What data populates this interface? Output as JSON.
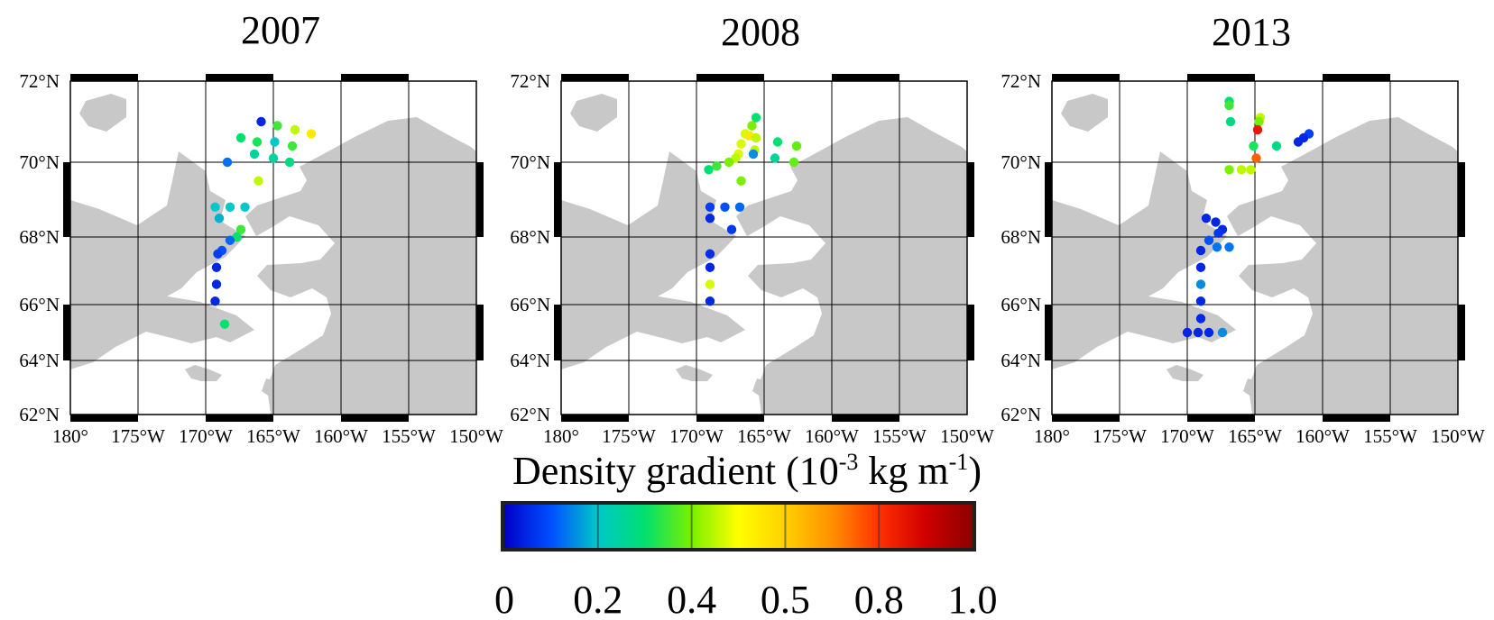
{
  "figure": {
    "colorbar_title_main": "Density gradient (10",
    "colorbar_title_exp1": "-3",
    "colorbar_title_mid": " kg m",
    "colorbar_title_exp2": "-1",
    "colorbar_title_end": ")",
    "colorbar_ticks": [
      "0",
      "0.2",
      "0.4",
      "0.5",
      "0.8",
      "1.0"
    ],
    "colorbar_tick_values": [
      0,
      0.2,
      0.4,
      0.5,
      0.8,
      1.0
    ],
    "colormap": [
      "#0000c8",
      "#0050ff",
      "#00c8c8",
      "#00e070",
      "#7af000",
      "#ffff00",
      "#ffd000",
      "#ff9000",
      "#ff3000",
      "#d00000",
      "#8c0000"
    ],
    "land_color": "#c8c8c8",
    "water_color": "#ffffff"
  },
  "chart_data": [
    {
      "type": "scatter",
      "title": "2007",
      "xlabel": "",
      "ylabel": "",
      "xlim": [
        -180,
        -150
      ],
      "ylim": [
        62,
        72
      ],
      "xticks": [
        "180°",
        "175°W",
        "170°W",
        "165°W",
        "160°W",
        "155°W",
        "150°W"
      ],
      "yticks": [
        "62°N",
        "64°N",
        "66°N",
        "68°N",
        "70°N",
        "72°N"
      ],
      "grid": true,
      "points": [
        {
          "lon": -165.9,
          "lat": 71.0,
          "v": 0.05
        },
        {
          "lon": -164.7,
          "lat": 70.9,
          "v": 0.35
        },
        {
          "lon": -163.4,
          "lat": 70.8,
          "v": 0.45
        },
        {
          "lon": -162.2,
          "lat": 70.7,
          "v": 0.55
        },
        {
          "lon": -167.4,
          "lat": 70.6,
          "v": 0.3
        },
        {
          "lon": -166.2,
          "lat": 70.5,
          "v": 0.32
        },
        {
          "lon": -164.9,
          "lat": 70.5,
          "v": 0.2
        },
        {
          "lon": -163.6,
          "lat": 70.4,
          "v": 0.35
        },
        {
          "lon": -166.4,
          "lat": 70.2,
          "v": 0.25
        },
        {
          "lon": -165.0,
          "lat": 70.1,
          "v": 0.25
        },
        {
          "lon": -163.8,
          "lat": 70.0,
          "v": 0.28
        },
        {
          "lon": -168.4,
          "lat": 70.0,
          "v": 0.13
        },
        {
          "lon": -166.1,
          "lat": 69.5,
          "v": 0.45
        },
        {
          "lon": -169.3,
          "lat": 68.8,
          "v": 0.2
        },
        {
          "lon": -168.2,
          "lat": 68.8,
          "v": 0.2
        },
        {
          "lon": -167.1,
          "lat": 68.8,
          "v": 0.2
        },
        {
          "lon": -169.0,
          "lat": 68.5,
          "v": 0.18
        },
        {
          "lon": -167.4,
          "lat": 68.2,
          "v": 0.35
        },
        {
          "lon": -167.7,
          "lat": 68.0,
          "v": 0.3
        },
        {
          "lon": -168.2,
          "lat": 67.9,
          "v": 0.12
        },
        {
          "lon": -168.8,
          "lat": 67.6,
          "v": 0.1
        },
        {
          "lon": -169.1,
          "lat": 67.5,
          "v": 0.08
        },
        {
          "lon": -169.2,
          "lat": 67.1,
          "v": 0.05
        },
        {
          "lon": -169.2,
          "lat": 66.6,
          "v": 0.05
        },
        {
          "lon": -169.3,
          "lat": 66.1,
          "v": 0.05
        },
        {
          "lon": -168.6,
          "lat": 65.3,
          "v": 0.3
        }
      ]
    },
    {
      "type": "scatter",
      "title": "2008",
      "xlabel": "",
      "ylabel": "",
      "xlim": [
        -180,
        -150
      ],
      "ylim": [
        62,
        72
      ],
      "xticks": [
        "180°",
        "175°W",
        "170°W",
        "165°W",
        "160°W",
        "155°W",
        "150°W"
      ],
      "yticks": [
        "62°N",
        "64°N",
        "66°N",
        "68°N",
        "70°N",
        "72°N"
      ],
      "grid": true,
      "points": [
        {
          "lon": -165.6,
          "lat": 71.1,
          "v": 0.3
        },
        {
          "lon": -165.9,
          "lat": 70.9,
          "v": 0.4
        },
        {
          "lon": -166.4,
          "lat": 70.7,
          "v": 0.47
        },
        {
          "lon": -166.1,
          "lat": 70.65,
          "v": 0.55
        },
        {
          "lon": -165.6,
          "lat": 70.6,
          "v": 0.45
        },
        {
          "lon": -166.7,
          "lat": 70.45,
          "v": 0.47
        },
        {
          "lon": -165.7,
          "lat": 70.3,
          "v": 0.45
        },
        {
          "lon": -164.0,
          "lat": 70.5,
          "v": 0.3
        },
        {
          "lon": -162.6,
          "lat": 70.4,
          "v": 0.38
        },
        {
          "lon": -166.9,
          "lat": 70.2,
          "v": 0.47
        },
        {
          "lon": -165.8,
          "lat": 70.2,
          "v": 0.15
        },
        {
          "lon": -164.2,
          "lat": 70.1,
          "v": 0.25
        },
        {
          "lon": -162.8,
          "lat": 70.0,
          "v": 0.38
        },
        {
          "lon": -167.1,
          "lat": 70.1,
          "v": 0.45
        },
        {
          "lon": -167.6,
          "lat": 70.0,
          "v": 0.4
        },
        {
          "lon": -168.5,
          "lat": 69.9,
          "v": 0.35
        },
        {
          "lon": -169.1,
          "lat": 69.8,
          "v": 0.3
        },
        {
          "lon": -166.7,
          "lat": 69.5,
          "v": 0.4
        },
        {
          "lon": -169.0,
          "lat": 68.8,
          "v": 0.08
        },
        {
          "lon": -167.9,
          "lat": 68.8,
          "v": 0.1
        },
        {
          "lon": -166.8,
          "lat": 68.8,
          "v": 0.12
        },
        {
          "lon": -169.0,
          "lat": 68.5,
          "v": 0.05
        },
        {
          "lon": -167.4,
          "lat": 68.2,
          "v": 0.07
        },
        {
          "lon": -169.0,
          "lat": 67.5,
          "v": 0.06
        },
        {
          "lon": -169.0,
          "lat": 67.1,
          "v": 0.05
        },
        {
          "lon": -169.0,
          "lat": 66.6,
          "v": 0.47
        },
        {
          "lon": -169.0,
          "lat": 66.1,
          "v": 0.05
        }
      ]
    },
    {
      "type": "scatter",
      "title": "2013",
      "xlabel": "",
      "ylabel": "",
      "xlim": [
        -180,
        -150
      ],
      "ylim": [
        62,
        72
      ],
      "xticks": [
        "180°",
        "175°W",
        "170°W",
        "165°W",
        "160°W",
        "155°W",
        "150°W"
      ],
      "yticks": [
        "62°N",
        "64°N",
        "66°N",
        "68°N",
        "70°N",
        "72°N"
      ],
      "grid": true,
      "points": [
        {
          "lon": -166.9,
          "lat": 71.5,
          "v": 0.3
        },
        {
          "lon": -166.9,
          "lat": 71.4,
          "v": 0.35
        },
        {
          "lon": -166.8,
          "lat": 71.0,
          "v": 0.28
        },
        {
          "lon": -164.6,
          "lat": 71.1,
          "v": 0.45
        },
        {
          "lon": -164.7,
          "lat": 71.0,
          "v": 0.4
        },
        {
          "lon": -164.8,
          "lat": 70.8,
          "v": 0.85
        },
        {
          "lon": -165.1,
          "lat": 70.4,
          "v": 0.32
        },
        {
          "lon": -163.4,
          "lat": 70.4,
          "v": 0.28
        },
        {
          "lon": -161.0,
          "lat": 70.7,
          "v": 0.08
        },
        {
          "lon": -161.4,
          "lat": 70.6,
          "v": 0.05
        },
        {
          "lon": -161.8,
          "lat": 70.5,
          "v": 0.05
        },
        {
          "lon": -164.9,
          "lat": 70.1,
          "v": 0.75
        },
        {
          "lon": -166.9,
          "lat": 69.8,
          "v": 0.4
        },
        {
          "lon": -166.0,
          "lat": 69.8,
          "v": 0.45
        },
        {
          "lon": -165.3,
          "lat": 69.8,
          "v": 0.45
        },
        {
          "lon": -168.6,
          "lat": 68.5,
          "v": 0.05
        },
        {
          "lon": -167.9,
          "lat": 68.4,
          "v": 0.05
        },
        {
          "lon": -167.4,
          "lat": 68.2,
          "v": 0.05
        },
        {
          "lon": -167.7,
          "lat": 68.1,
          "v": 0.07
        },
        {
          "lon": -168.4,
          "lat": 67.9,
          "v": 0.1
        },
        {
          "lon": -167.8,
          "lat": 67.7,
          "v": 0.13
        },
        {
          "lon": -166.9,
          "lat": 67.7,
          "v": 0.13
        },
        {
          "lon": -169.0,
          "lat": 67.6,
          "v": 0.05
        },
        {
          "lon": -169.0,
          "lat": 67.1,
          "v": 0.05
        },
        {
          "lon": -169.0,
          "lat": 66.6,
          "v": 0.15
        },
        {
          "lon": -169.0,
          "lat": 66.1,
          "v": 0.05
        },
        {
          "lon": -169.0,
          "lat": 65.5,
          "v": 0.05
        },
        {
          "lon": -170.0,
          "lat": 65.0,
          "v": 0.05
        },
        {
          "lon": -169.2,
          "lat": 65.0,
          "v": 0.05
        },
        {
          "lon": -168.4,
          "lat": 65.0,
          "v": 0.05
        },
        {
          "lon": -167.4,
          "lat": 65.0,
          "v": 0.15
        }
      ]
    }
  ]
}
